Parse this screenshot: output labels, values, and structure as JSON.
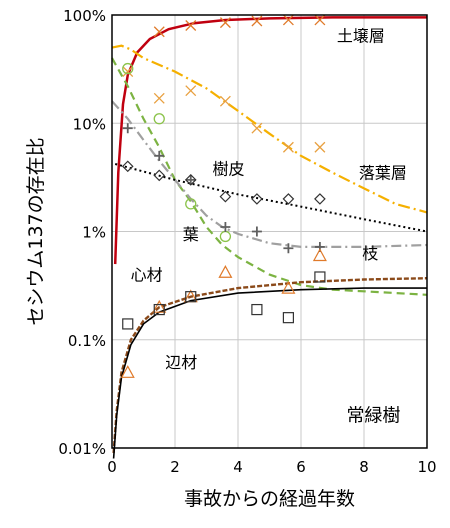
{
  "chart_data": {
    "type": "scatter",
    "xlabel": "事故からの経過年数",
    "ylabel": "セシウム137の存在比",
    "xlim": [
      0,
      10
    ],
    "ylim_percent": [
      0.01,
      100
    ],
    "y_scale": "log",
    "grid": true,
    "x_ticks": [
      "0",
      "2",
      "4",
      "6",
      "8",
      "10"
    ],
    "y_ticks": [
      "0.01%",
      "0.1%",
      "1%",
      "10%",
      "100%"
    ],
    "annotations": [
      {
        "text": "土壌層",
        "x": 7.9,
        "y": 65
      },
      {
        "text": "落葉層",
        "x": 8.6,
        "y": 3.5
      },
      {
        "text": "樹皮",
        "x": 3.7,
        "y": 3.8
      },
      {
        "text": "葉",
        "x": 2.5,
        "y": 0.95
      },
      {
        "text": "枝",
        "x": 8.2,
        "y": 0.63
      },
      {
        "text": "心材",
        "x": 1.1,
        "y": 0.4
      },
      {
        "text": "辺材",
        "x": 2.2,
        "y": 0.062
      },
      {
        "text": "常緑樹",
        "x": 8.3,
        "y": 0.02
      }
    ],
    "series": [
      {
        "component": "土壌層",
        "color": "#c0000f",
        "marker": "x",
        "points": [
          [
            1.5,
            70
          ],
          [
            2.5,
            80
          ],
          [
            3.6,
            85
          ],
          [
            4.6,
            88
          ],
          [
            5.6,
            90
          ],
          [
            6.6,
            90
          ]
        ],
        "curve": [
          [
            0.1,
            0.5
          ],
          [
            0.2,
            3.5
          ],
          [
            0.35,
            15
          ],
          [
            0.5,
            28
          ],
          [
            0.8,
            45
          ],
          [
            1.2,
            60
          ],
          [
            1.8,
            74
          ],
          [
            2.6,
            84
          ],
          [
            3.6,
            90
          ],
          [
            5,
            93
          ],
          [
            7,
            95
          ],
          [
            10,
            95
          ]
        ]
      },
      {
        "component": "落葉層",
        "color": "#f5b000",
        "marker": "x",
        "points": [
          [
            0.5,
            30
          ],
          [
            1.5,
            17
          ],
          [
            2.5,
            20
          ],
          [
            3.6,
            16
          ],
          [
            4.6,
            9
          ],
          [
            5.6,
            6
          ],
          [
            6.6,
            6
          ]
        ],
        "curve": [
          [
            0,
            50
          ],
          [
            0.3,
            52
          ],
          [
            0.6,
            48
          ],
          [
            1,
            40
          ],
          [
            2,
            30
          ],
          [
            3,
            21
          ],
          [
            4,
            13
          ],
          [
            5,
            8
          ],
          [
            6,
            5
          ],
          [
            7,
            3.5
          ],
          [
            8,
            2.5
          ],
          [
            9,
            1.8
          ],
          [
            10,
            1.5
          ]
        ]
      },
      {
        "component": "葉",
        "color": "#7cb342",
        "marker": "circle",
        "points": [
          [
            0.5,
            32
          ],
          [
            1.5,
            11
          ],
          [
            2.5,
            1.8
          ],
          [
            3.6,
            0.9
          ]
        ],
        "curve": [
          [
            0,
            40
          ],
          [
            0.5,
            22
          ],
          [
            1,
            11
          ],
          [
            1.5,
            6
          ],
          [
            2,
            3
          ],
          [
            2.5,
            1.9
          ],
          [
            3,
            1.1
          ],
          [
            3.5,
            0.75
          ],
          [
            4,
            0.58
          ],
          [
            5,
            0.4
          ],
          [
            6,
            0.32
          ],
          [
            7,
            0.29
          ],
          [
            8,
            0.28
          ],
          [
            10,
            0.26
          ]
        ]
      },
      {
        "component": "枝",
        "color": "#a0a0a0",
        "marker": "plus",
        "points": [
          [
            0.5,
            9
          ],
          [
            1.5,
            5
          ],
          [
            2.5,
            3
          ],
          [
            3.6,
            1.1
          ],
          [
            4.6,
            1.0
          ],
          [
            5.6,
            0.7
          ],
          [
            6.6,
            0.72
          ]
        ],
        "curve": [
          [
            0,
            16
          ],
          [
            0.5,
            11
          ],
          [
            1,
            7
          ],
          [
            1.5,
            4.5
          ],
          [
            2,
            3
          ],
          [
            2.5,
            2
          ],
          [
            3,
            1.4
          ],
          [
            3.5,
            1.1
          ],
          [
            4,
            0.95
          ],
          [
            5,
            0.78
          ],
          [
            6,
            0.72
          ],
          [
            8,
            0.72
          ],
          [
            10,
            0.75
          ]
        ]
      },
      {
        "component": "樹皮",
        "color": "#000000",
        "marker": "diamond",
        "points": [
          [
            0.5,
            4
          ],
          [
            1.5,
            3.3
          ],
          [
            2.5,
            3
          ],
          [
            3.6,
            2.1
          ],
          [
            4.6,
            2
          ],
          [
            5.6,
            2
          ],
          [
            6.6,
            2
          ]
        ],
        "curve": [
          [
            0.1,
            4.2
          ],
          [
            2,
            3
          ],
          [
            4,
            2.2
          ],
          [
            6,
            1.7
          ],
          [
            8,
            1.3
          ],
          [
            10,
            1.0
          ]
        ]
      },
      {
        "component": "心材",
        "color": "#8b4a1a",
        "marker": "triangle",
        "points": [
          [
            0.5,
            0.05
          ],
          [
            1.5,
            0.2
          ],
          [
            2.5,
            0.25
          ],
          [
            3.6,
            0.42
          ],
          [
            5.6,
            0.3
          ],
          [
            6.6,
            0.6
          ]
        ],
        "curve": [
          [
            0.05,
            0.009
          ],
          [
            0.15,
            0.022
          ],
          [
            0.3,
            0.05
          ],
          [
            0.6,
            0.1
          ],
          [
            1,
            0.15
          ],
          [
            1.5,
            0.2
          ],
          [
            2.5,
            0.25
          ],
          [
            4,
            0.3
          ],
          [
            6,
            0.34
          ],
          [
            8,
            0.36
          ],
          [
            10,
            0.37
          ]
        ]
      },
      {
        "component": "辺材",
        "color": "#000000",
        "marker": "square",
        "points": [
          [
            0.5,
            0.14
          ],
          [
            1.5,
            0.19
          ],
          [
            2.5,
            0.25
          ],
          [
            4.6,
            0.19
          ],
          [
            5.6,
            0.16
          ],
          [
            6.6,
            0.38
          ]
        ],
        "curve": [
          [
            0.05,
            0.008
          ],
          [
            0.15,
            0.02
          ],
          [
            0.3,
            0.045
          ],
          [
            0.6,
            0.09
          ],
          [
            1,
            0.14
          ],
          [
            1.5,
            0.18
          ],
          [
            2.5,
            0.23
          ],
          [
            4,
            0.27
          ],
          [
            6,
            0.29
          ],
          [
            8,
            0.3
          ],
          [
            10,
            0.3
          ]
        ]
      }
    ]
  }
}
